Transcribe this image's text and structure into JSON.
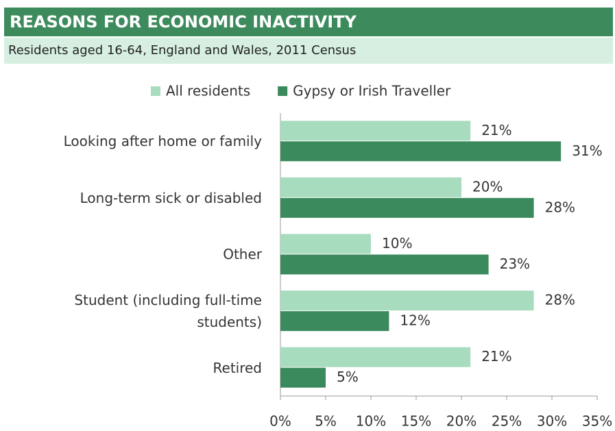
{
  "chart_data": {
    "type": "bar",
    "orientation": "horizontal",
    "title": "REASONS FOR ECONOMIC INACTIVITY",
    "subtitle": "Residents aged 16-64, England and Wales, 2011 Census",
    "categories": [
      "Looking after home or family",
      "Long-term sick or disabled",
      "Other",
      "Student (including full-time students)",
      "Retired"
    ],
    "series": [
      {
        "name": "All residents",
        "color": "#a8dcbf",
        "values": [
          21,
          20,
          10,
          28,
          21
        ],
        "value_labels": [
          "21%",
          "20%",
          "10%",
          "28%",
          "21%"
        ]
      },
      {
        "name": "Gypsy or Irish Traveller",
        "color": "#3b8a5d",
        "values": [
          31,
          28,
          23,
          12,
          5
        ],
        "value_labels": [
          "31%",
          "28%",
          "23%",
          "12%",
          "5%"
        ]
      }
    ],
    "xlim": [
      0,
      35
    ],
    "xticks": [
      {
        "value": 0,
        "label": "0%"
      },
      {
        "value": 5,
        "label": "5%"
      },
      {
        "value": 10,
        "label": "10%"
      },
      {
        "value": 15,
        "label": "15%"
      },
      {
        "value": 20,
        "label": "20%"
      },
      {
        "value": 25,
        "label": "25%"
      },
      {
        "value": 30,
        "label": "30%"
      },
      {
        "value": 35,
        "label": "35%"
      }
    ],
    "legend": "top"
  }
}
